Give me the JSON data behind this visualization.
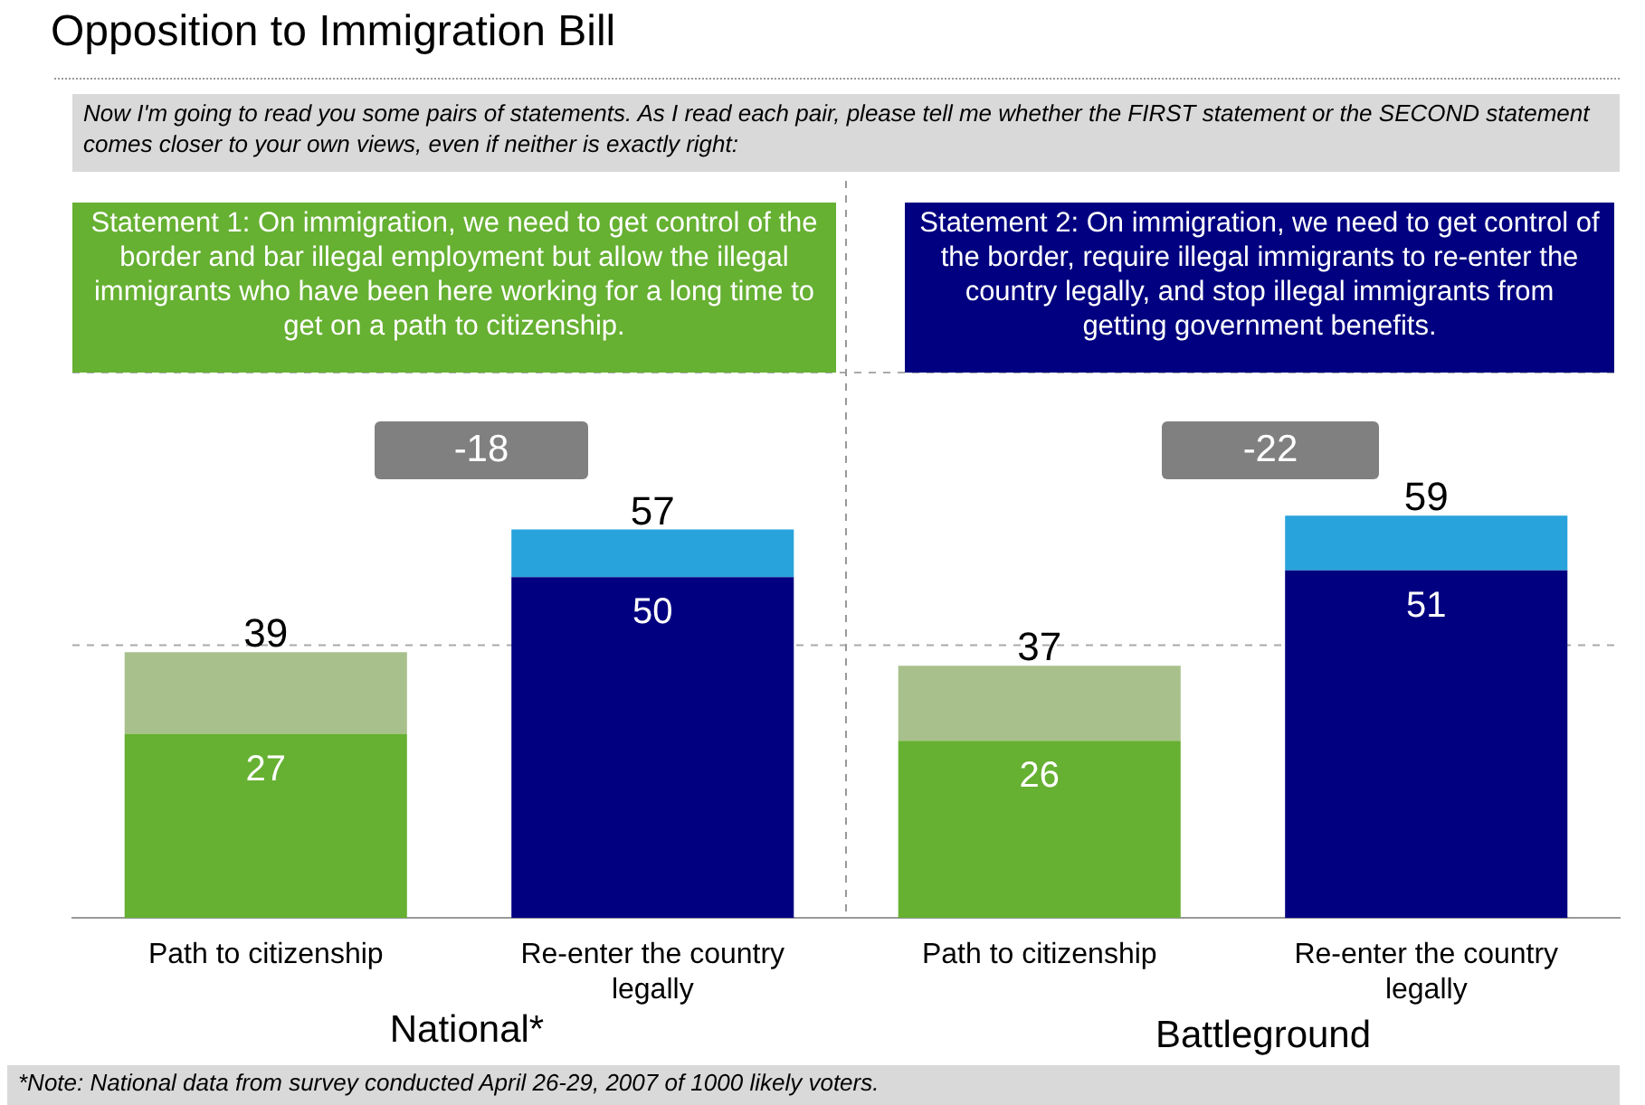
{
  "chart_data": {
    "type": "bar",
    "title": "Opposition to Immigration Bill",
    "categories": [
      "Path to citizenship",
      "Re-enter the country legally",
      "Path to citizenship",
      "Re-enter the country legally"
    ],
    "series": [
      {
        "colors": [
          "#66b032",
          "#000080",
          "#66b032",
          "#000080"
        ],
        "values": [
          27,
          50,
          26,
          51
        ],
        "value_labels": [
          "27",
          "50",
          "26",
          "51"
        ]
      },
      {
        "colors": [
          "#a8c08c",
          "#29a3dc",
          "#a8c08c",
          "#29a3dc"
        ],
        "values": [
          12,
          7,
          11,
          8
        ]
      }
    ],
    "totals": [
      "39",
      "57",
      "37",
      "59"
    ],
    "stacked": true,
    "ref_lines": [
      {
        "axis": "y",
        "value": 40,
        "color": "#aaaaaa",
        "line_style": "dashed"
      },
      {
        "axis": "y",
        "value": 80,
        "color": "#aaaaaa",
        "line_style": "dashed"
      }
    ],
    "tick_labels": "x",
    "legend": false,
    "annotations": [
      "Now I'm going to read you some pairs of statements. As I read each pair, please tell me whether the FIRST statement or the SECOND statement comes closer to your own views, even if neither is exactly right:",
      "Statement 1: On immigration, we need to get control of the border and bar illegal employment but allow the illegal immigrants who have been here working for a long time to get on a path to citizenship.",
      "Statement 2: On immigration, we need to get control of the border, require illegal immigrants to re-enter the country legally, and stop illegal immigrants from getting government benefits.",
      "-18",
      "-22",
      "National*",
      "Battleground",
      "*Note: National data from survey conducted April 26-29, 2007 of 1000 likely voters."
    ]
  }
}
